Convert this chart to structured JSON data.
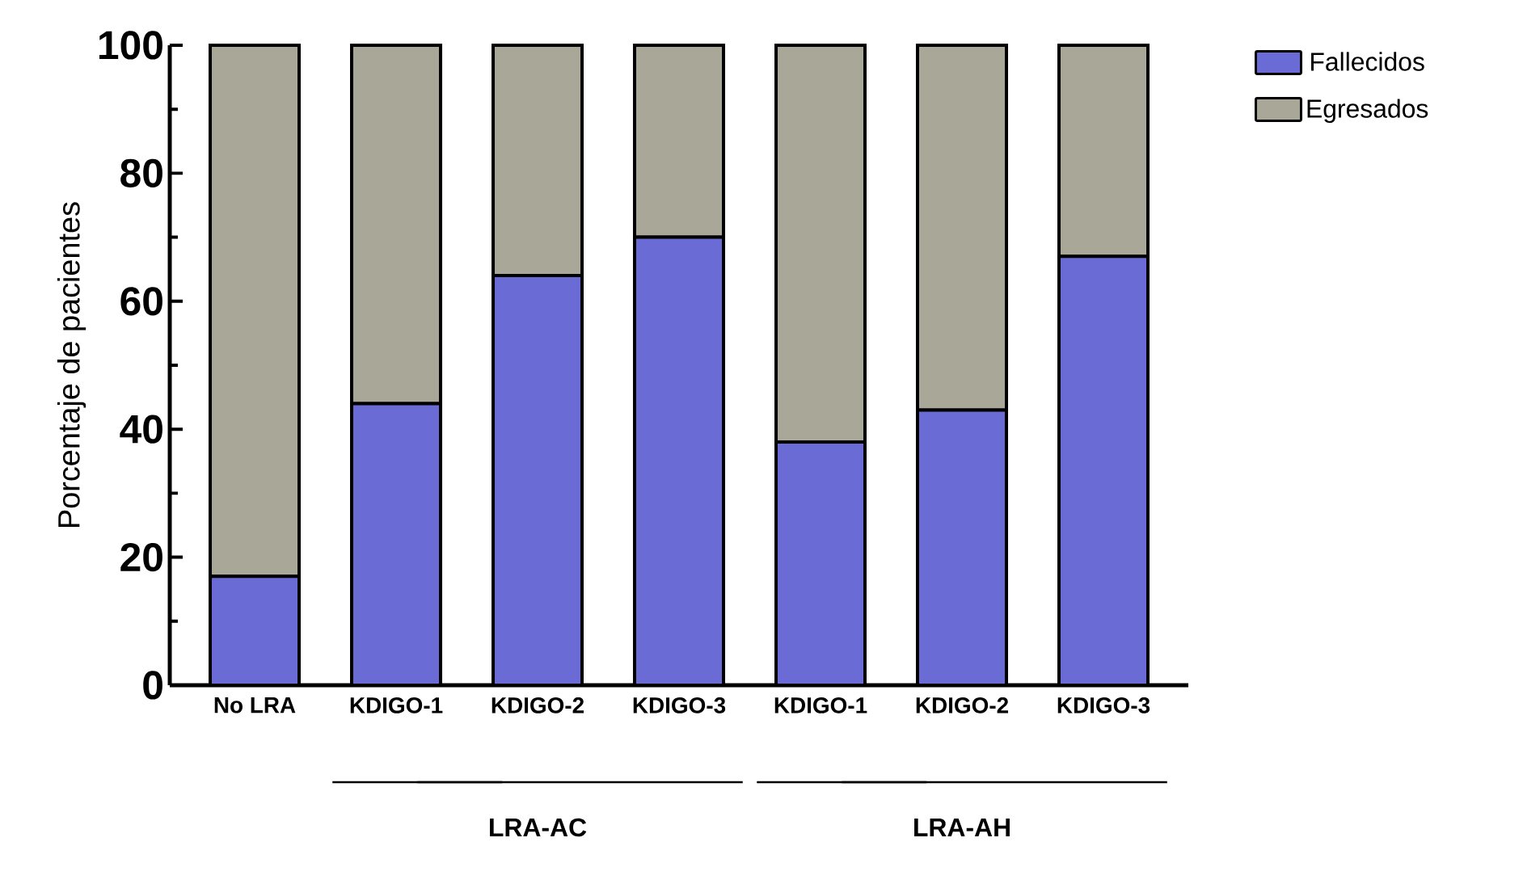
{
  "chart_data": {
    "type": "bar",
    "stacked": true,
    "ylabel": "Porcentaje de pacientes",
    "categories": [
      "No LRA",
      "KDIGO-1",
      "KDIGO-2",
      "KDIGO-3",
      "KDIGO-1",
      "KDIGO-2",
      "KDIGO-3"
    ],
    "series": [
      {
        "name": "Fallecidos",
        "color": "#6b6bd6",
        "values": [
          17,
          44,
          64,
          70,
          38,
          43,
          67
        ]
      },
      {
        "name": "Egresados",
        "color": "#a8a798",
        "values": [
          83,
          56,
          36,
          30,
          62,
          57,
          33
        ]
      }
    ],
    "ylim": [
      0,
      100
    ],
    "yticks": [
      0,
      20,
      40,
      60,
      80,
      100
    ],
    "grid": false,
    "legend": "top right",
    "annotations": [
      "LRA-AC",
      "LRA-AH"
    ]
  }
}
